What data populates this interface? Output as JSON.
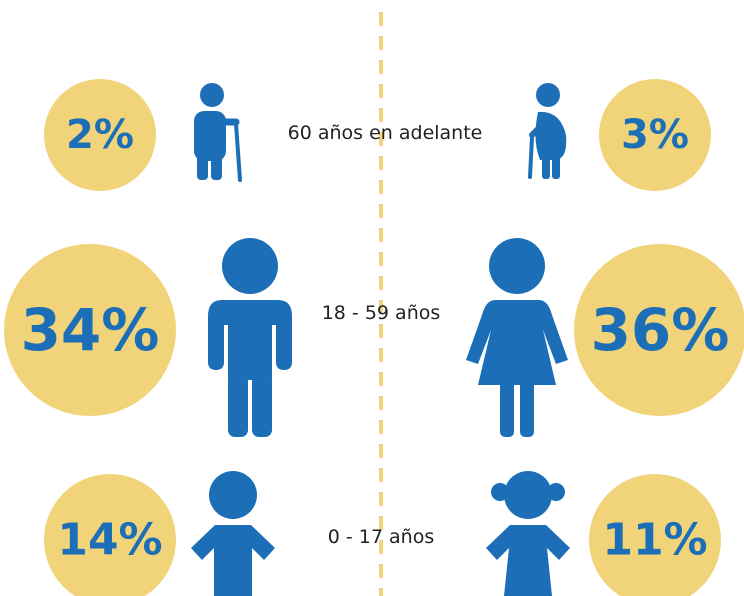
{
  "rows": [
    {
      "label": "60 años en adelante",
      "male": "2%",
      "female": "3%"
    },
    {
      "label": "18 - 59 años",
      "male": "34%",
      "female": "36%"
    },
    {
      "label": "0 - 17 años",
      "male": "14%",
      "female": "11%"
    }
  ]
}
